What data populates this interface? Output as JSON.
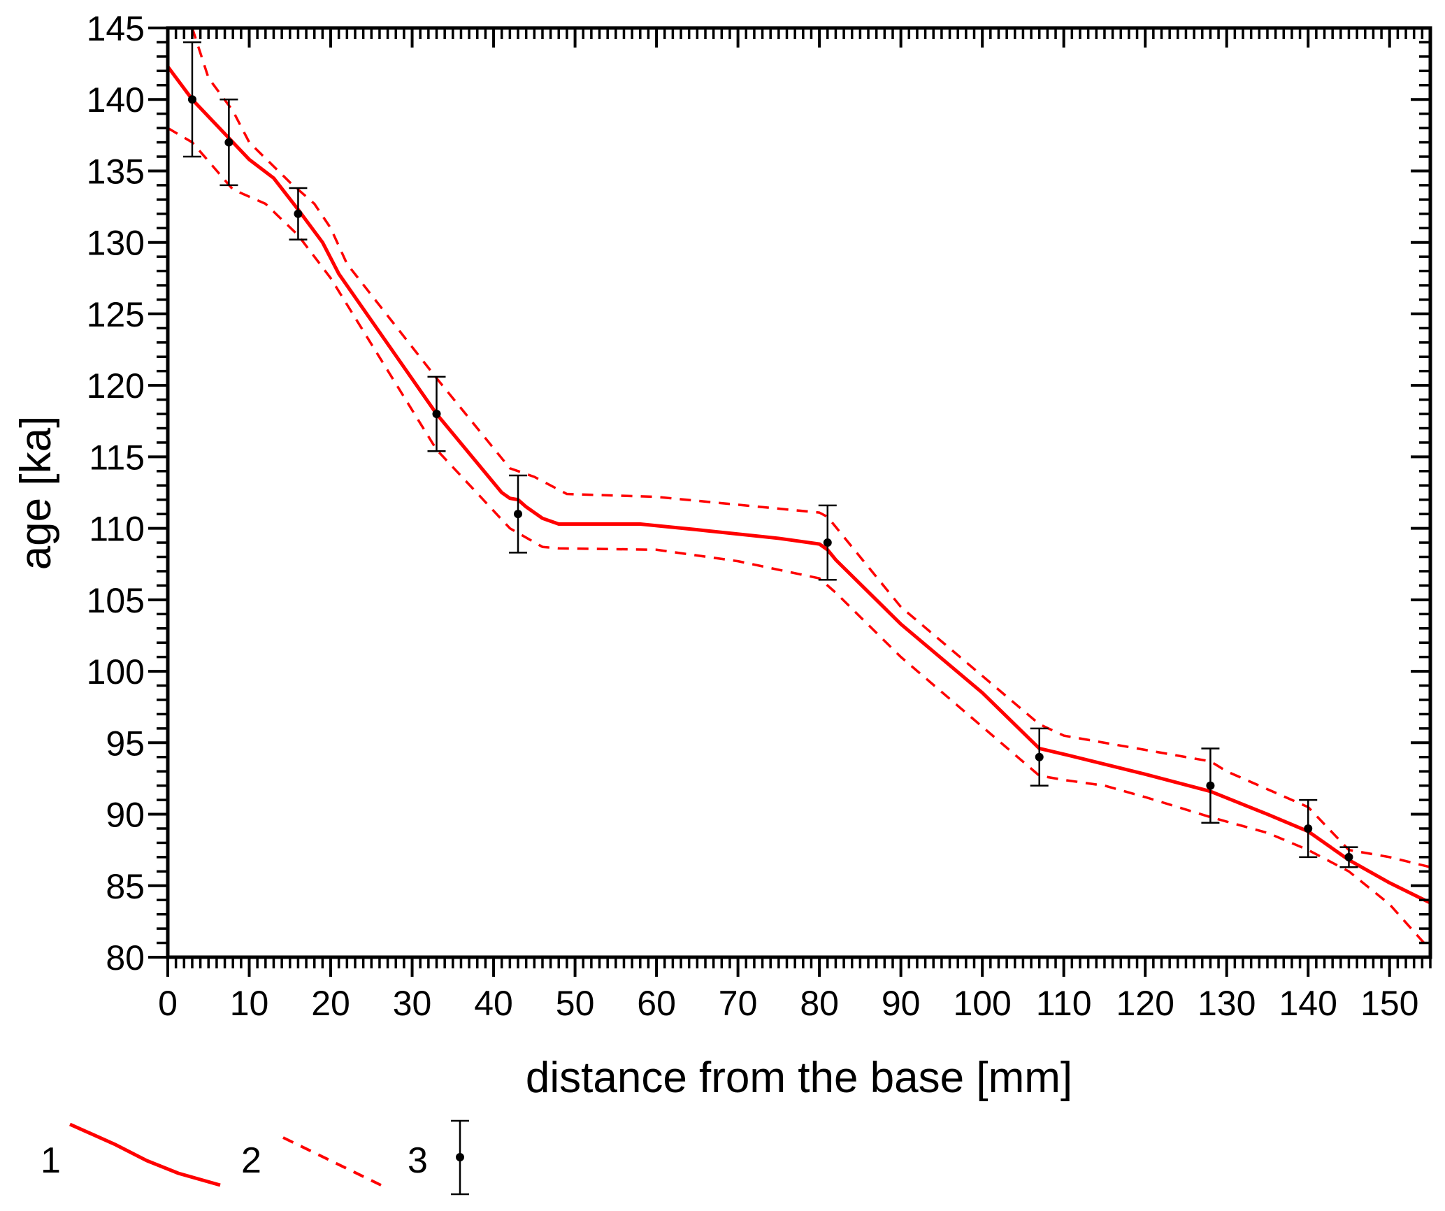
{
  "chart_data": {
    "type": "line",
    "xlabel": "distance from the base [mm]",
    "ylabel": "age [ka]",
    "xlim": [
      0,
      155
    ],
    "ylim": [
      80,
      145
    ],
    "x_ticks": [
      0,
      10,
      20,
      30,
      40,
      50,
      60,
      70,
      80,
      90,
      100,
      110,
      120,
      130,
      140,
      150
    ],
    "y_ticks": [
      80,
      85,
      90,
      95,
      100,
      105,
      110,
      115,
      120,
      125,
      130,
      135,
      140,
      145
    ],
    "grid": false,
    "colors": {
      "model": "#ff0000",
      "bounds": "#ff0000",
      "points": "#000000"
    },
    "series": [
      {
        "name": "1",
        "style": "solid",
        "x": [
          0,
          3,
          8,
          10,
          13,
          16,
          19,
          21,
          33,
          41,
          42,
          43,
          44,
          46,
          48,
          50,
          58,
          65,
          75,
          80,
          81,
          82,
          90,
          100,
          107,
          110,
          120,
          128,
          135,
          140,
          145,
          150,
          155
        ],
        "y": [
          142.3,
          140,
          137,
          135.8,
          134.5,
          132.3,
          130,
          127.8,
          118,
          112.5,
          112.1,
          112,
          111.5,
          110.7,
          110.3,
          110.3,
          110.3,
          109.9,
          109.3,
          108.9,
          108.5,
          107.8,
          103.3,
          98.5,
          94.6,
          94.2,
          92.8,
          91.6,
          90,
          88.8,
          86.8,
          85.2,
          83.8
        ]
      },
      {
        "name": "2",
        "style": "dashed-upper",
        "x": [
          3,
          5,
          8,
          10,
          15,
          18,
          20,
          22,
          33,
          42,
          45,
          49,
          60,
          80,
          81,
          90,
          107,
          110,
          120,
          128,
          130,
          140,
          145,
          150,
          155
        ],
        "y": [
          145,
          141.5,
          139.2,
          137,
          134.2,
          132.7,
          131,
          128.5,
          120.5,
          114.2,
          113.6,
          112.4,
          112.2,
          111.1,
          110.8,
          104.5,
          96.3,
          95.5,
          94.5,
          93.7,
          93,
          90.5,
          87.5,
          87,
          86.3
        ]
      },
      {
        "name": "2",
        "style": "dashed-lower",
        "x": [
          0,
          3,
          8,
          12,
          16,
          20,
          33,
          42,
          46,
          48,
          60,
          70,
          80,
          82,
          90,
          107,
          110,
          115,
          120,
          128,
          135,
          140,
          145,
          150,
          155
        ],
        "y": [
          138,
          137,
          133.7,
          132.7,
          130.5,
          127.5,
          115.5,
          110,
          108.7,
          108.6,
          108.5,
          107.7,
          106.5,
          105.5,
          101,
          92.7,
          92.4,
          92,
          91.2,
          89.8,
          88.7,
          87.5,
          86,
          83.7,
          80.5
        ]
      },
      {
        "name": "3",
        "style": "points-with-errorbars",
        "x": [
          3,
          7.5,
          16,
          33,
          43,
          81,
          107,
          128,
          140,
          145
        ],
        "y": [
          140,
          137,
          132,
          118,
          111,
          109,
          94,
          92,
          89,
          87
        ],
        "err": [
          4,
          3,
          1.8,
          2.6,
          2.7,
          2.6,
          2,
          2.6,
          2,
          0.7
        ]
      }
    ],
    "legend": {
      "placement": "bottom-left",
      "entries": [
        "1",
        "2",
        "3"
      ]
    }
  }
}
